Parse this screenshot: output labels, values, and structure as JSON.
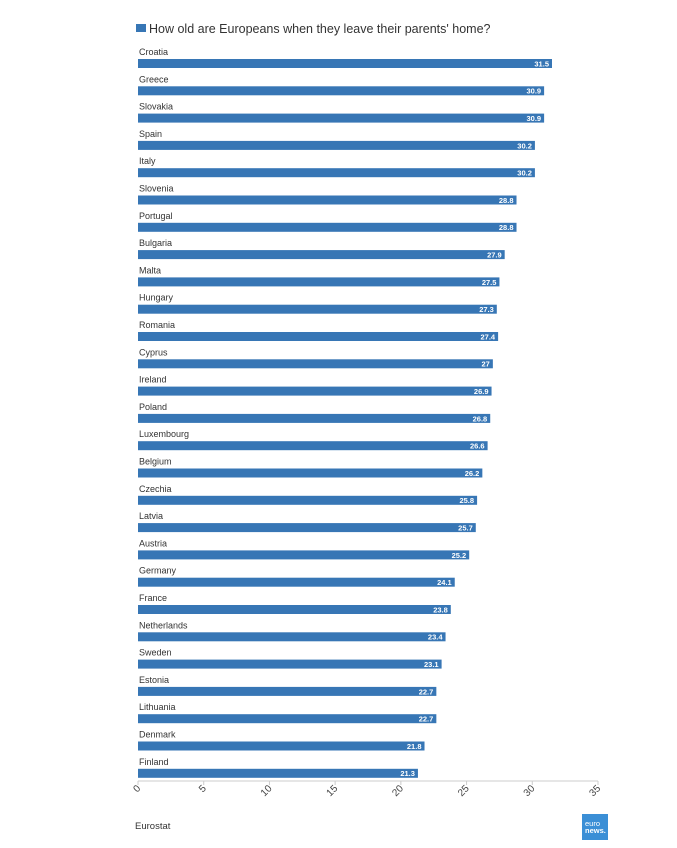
{
  "chart_data": {
    "type": "bar",
    "orientation": "horizontal",
    "categories": [
      "Croatia",
      "Greece",
      "Slovakia",
      "Spain",
      "Italy",
      "Slovenia",
      "Portugal",
      "Bulgaria",
      "Malta",
      "Hungary",
      "Romania",
      "Cyprus",
      "Ireland",
      "Poland",
      "Luxembourg",
      "Belgium",
      "Czechia",
      "Latvia",
      "Austria",
      "Germany",
      "France",
      "Netherlands",
      "Sweden",
      "Estonia",
      "Lithuania",
      "Denmark",
      "Finland"
    ],
    "series": [
      {
        "name": "How old are Europeans when they leave their parents' home?",
        "values": [
          31.5,
          30.9,
          30.9,
          30.2,
          30.2,
          28.8,
          28.8,
          27.9,
          27.5,
          27.3,
          27.4,
          27,
          26.9,
          26.8,
          26.6,
          26.2,
          25.8,
          25.7,
          25.2,
          24.1,
          23.8,
          23.4,
          23.1,
          22.7,
          22.7,
          21.8,
          21.3
        ]
      }
    ],
    "xlim": [
      0,
      35
    ],
    "xticks": [
      0,
      5,
      10,
      15,
      20,
      25,
      30,
      35
    ],
    "legend": "top",
    "grid": false,
    "bar_color": "#3776b5"
  },
  "source": "Eurostat",
  "logo": {
    "line1": "euro",
    "line2": "news."
  }
}
